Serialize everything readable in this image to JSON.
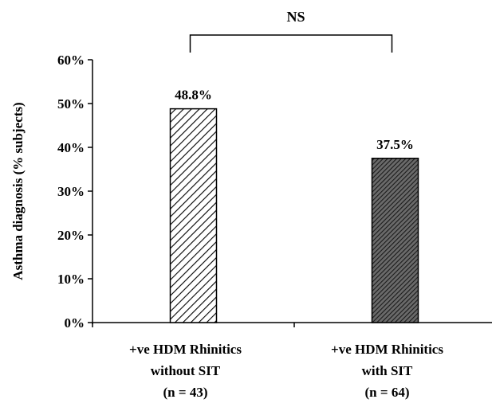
{
  "chart_data": {
    "type": "bar",
    "categories": [
      [
        "+ve HDM Rhinitics",
        "without SIT",
        "(n = 43)"
      ],
      [
        "+ve HDM Rhinitics",
        "with SIT",
        "(n = 64)"
      ]
    ],
    "values": [
      48.8,
      37.5
    ],
    "data_labels": [
      "48.8%",
      "37.5%"
    ],
    "bar_fills": [
      "light-diagonal-hatch",
      "dark-diagonal-hatch"
    ],
    "ylabel": "Asthma diagnosis (% subjects)",
    "ylim": [
      0,
      60
    ],
    "yticks": [
      0,
      10,
      20,
      30,
      40,
      50,
      60
    ],
    "ytick_labels": [
      "0%",
      "10%",
      "20%",
      "30%",
      "40%",
      "50%",
      "60%"
    ],
    "grid": false,
    "legend": "none",
    "annotation": {
      "text": "NS",
      "type": "bracket",
      "between": [
        0,
        1
      ]
    }
  }
}
